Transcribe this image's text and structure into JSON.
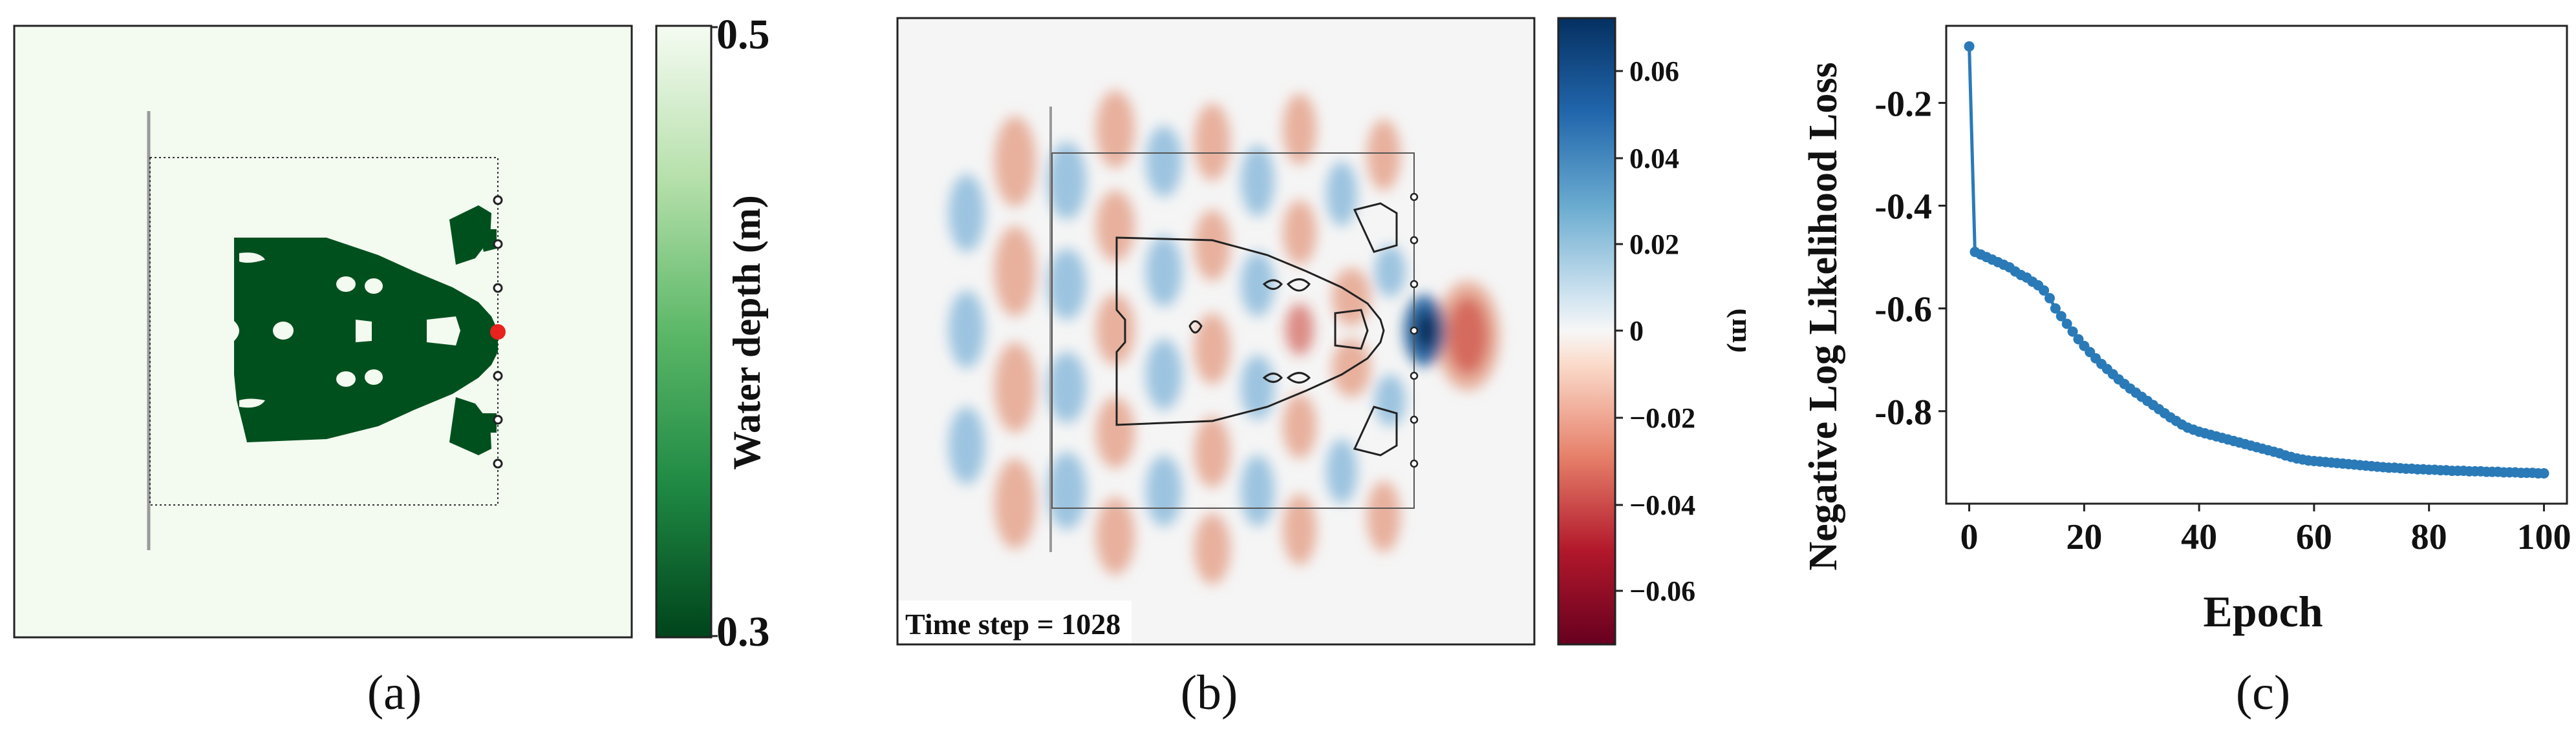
{
  "panels": {
    "a": {
      "label": "(a)",
      "colorbar": {
        "label": "Water depth (m)",
        "max_label": "0.5",
        "min_label": "0.3"
      }
    },
    "b": {
      "label": "(b)",
      "annotation": "Time step = 1028",
      "colorbar": {
        "unit": "(m)",
        "ticks": [
          "0.06",
          "0.04",
          "0.02",
          "0",
          "−0.02",
          "−0.04",
          "−0.06"
        ]
      }
    },
    "c": {
      "label": "(c)"
    }
  },
  "colors": {
    "map_background": "#f3faf0",
    "dark_green": "#00501e",
    "marker_red": "#e8221e",
    "line_blue": "#2a7ab8",
    "pos_blue": "#053061",
    "neg_red": "#67001f"
  },
  "chart_data": [
    {
      "type": "heatmap",
      "panel": "a",
      "colorbar": {
        "label": "Water depth (m)",
        "range": [
          0.3,
          0.5
        ],
        "colormap": "Greens"
      },
      "sensor_markers": 7,
      "highlighted_sensor": 4
    },
    {
      "type": "heatmap",
      "panel": "b",
      "annotation": "Time step = 1028",
      "colorbar": {
        "label": "(m)",
        "range": [
          -0.07,
          0.07
        ],
        "colormap": "RdBu",
        "ticks": [
          0.06,
          0.04,
          0.02,
          0,
          -0.02,
          -0.04,
          -0.06
        ]
      }
    },
    {
      "type": "line",
      "panel": "c",
      "xlabel": "Epoch",
      "ylabel": "Negative Log Likelihood Loss",
      "xlim": [
        -4,
        104
      ],
      "ylim": [
        -0.98,
        -0.05
      ],
      "xticks": [
        0,
        20,
        40,
        60,
        80,
        100
      ],
      "yticks": [
        -0.2,
        -0.4,
        -0.6,
        -0.8
      ],
      "ytick_labels": [
        "-0.2",
        "-0.4",
        "-0.6",
        "-0.8"
      ],
      "grid": false,
      "series": [
        {
          "x": [
            0,
            1,
            2,
            3,
            4,
            5,
            6,
            7,
            8,
            9,
            10,
            11,
            12,
            13,
            14,
            15,
            16,
            17,
            18,
            19,
            20,
            21,
            22,
            23,
            24,
            25,
            26,
            27,
            28,
            29,
            30,
            31,
            32,
            33,
            34,
            35,
            36,
            37,
            38,
            39,
            40,
            41,
            42,
            43,
            44,
            45,
            46,
            47,
            48,
            49,
            50,
            51,
            52,
            53,
            54,
            55,
            56,
            57,
            58,
            59,
            60,
            61,
            62,
            63,
            64,
            65,
            66,
            67,
            68,
            69,
            70,
            71,
            72,
            73,
            74,
            75,
            76,
            77,
            78,
            79,
            80,
            81,
            82,
            83,
            84,
            85,
            86,
            87,
            88,
            89,
            90,
            91,
            92,
            93,
            94,
            95,
            96,
            97,
            98,
            99,
            100
          ],
          "y": [
            -0.09,
            -0.49,
            -0.495,
            -0.5,
            -0.505,
            -0.51,
            -0.515,
            -0.52,
            -0.528,
            -0.535,
            -0.54,
            -0.548,
            -0.555,
            -0.565,
            -0.58,
            -0.6,
            -0.615,
            -0.63,
            -0.645,
            -0.66,
            -0.673,
            -0.685,
            -0.697,
            -0.708,
            -0.718,
            -0.728,
            -0.738,
            -0.747,
            -0.756,
            -0.764,
            -0.772,
            -0.78,
            -0.788,
            -0.796,
            -0.804,
            -0.812,
            -0.819,
            -0.826,
            -0.832,
            -0.836,
            -0.84,
            -0.843,
            -0.846,
            -0.849,
            -0.852,
            -0.855,
            -0.858,
            -0.861,
            -0.864,
            -0.867,
            -0.87,
            -0.873,
            -0.876,
            -0.879,
            -0.882,
            -0.886,
            -0.889,
            -0.892,
            -0.894,
            -0.896,
            -0.897,
            -0.898,
            -0.899,
            -0.9,
            -0.901,
            -0.902,
            -0.903,
            -0.904,
            -0.905,
            -0.906,
            -0.907,
            -0.908,
            -0.909,
            -0.91,
            -0.91,
            -0.911,
            -0.912,
            -0.912,
            -0.913,
            -0.913,
            -0.914,
            -0.914,
            -0.915,
            -0.915,
            -0.916,
            -0.916,
            -0.916,
            -0.917,
            -0.917,
            -0.917,
            -0.918,
            -0.918,
            -0.918,
            -0.919,
            -0.919,
            -0.919,
            -0.92,
            -0.92,
            -0.92,
            -0.921,
            -0.921
          ]
        }
      ]
    }
  ]
}
